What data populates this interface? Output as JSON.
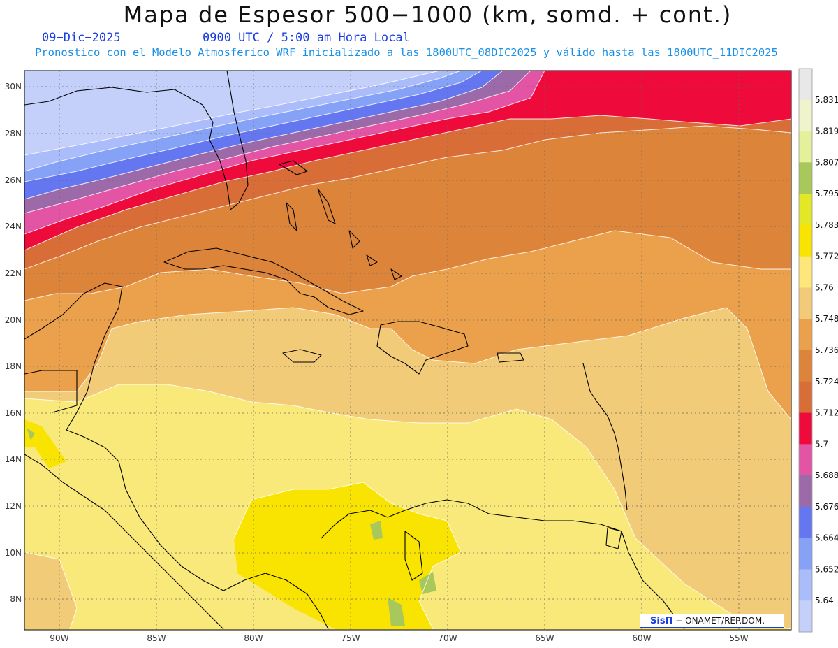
{
  "header": {
    "title": "Mapa de Espesor 500−1000 (km, somd. + cont.)",
    "date": "09−Dic−2025",
    "time": "0900 UTC / 5:00 am Hora Local",
    "forecast_note": "Pronostico con el Modelo Atmosferico WRF inicializado a las 1800UTC_08DIC2025 y válido hasta las  1800UTC_11DIC2025"
  },
  "axes": {
    "lat_labels": [
      "30N",
      "28N",
      "26N",
      "24N",
      "22N",
      "20N",
      "18N",
      "16N",
      "14N",
      "12N",
      "10N",
      "8N"
    ],
    "lon_labels": [
      "90W",
      "85W",
      "80W",
      "75W",
      "70W",
      "65W",
      "60W",
      "55W"
    ]
  },
  "colorbar": {
    "labels": [
      "5.831",
      "5.819",
      "5.807",
      "5.795",
      "5.783",
      "5.772",
      "5.76",
      "5.748",
      "5.736",
      "5.724",
      "5.712",
      "5.7",
      "5.688",
      "5.676",
      "5.664",
      "5.652",
      "5.64"
    ],
    "colors": [
      "#e8e8e8",
      "#f0f4cc",
      "#e4f09a",
      "#a8c85c",
      "#e2e826",
      "#f8e400",
      "#fde67a",
      "#f2cb78",
      "#eba04b",
      "#dd843b",
      "#d96d38",
      "#ef0a3c",
      "#e454a4",
      "#9c6aa8",
      "#6476f0",
      "#86a2f6",
      "#aabcfa",
      "#c4d0fa"
    ]
  },
  "credit": {
    "brand": "SisΠ",
    "org": "− ONAMET/REP.DOM."
  }
}
